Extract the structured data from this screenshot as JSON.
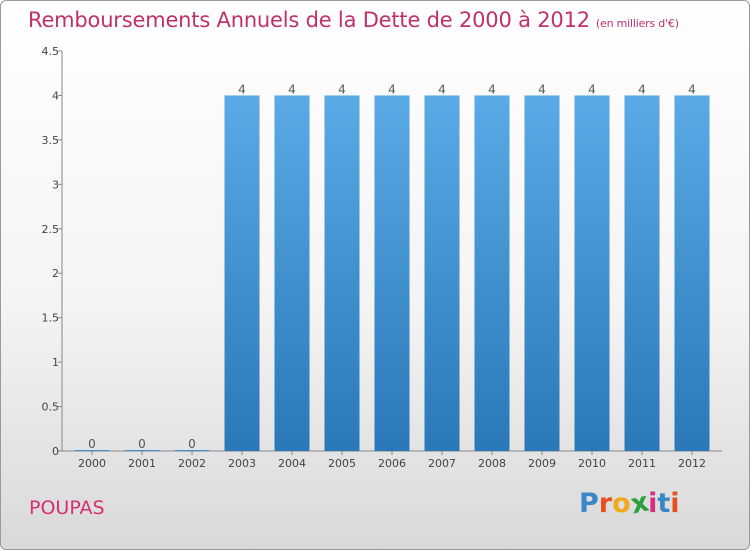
{
  "header": {
    "title": "Remboursements Annuels de la Dette de 2000 à 2012",
    "subtitle": "(en milliers d'€)"
  },
  "footer": {
    "commune": "POUPAS",
    "logo_letters": [
      "P",
      "r",
      "o",
      "x",
      "i",
      "t",
      "i"
    ],
    "logo_colors": [
      "#3a87c8",
      "#e7501e",
      "#f2a81c",
      "#2c9e3c",
      "#d92c86",
      "#3a87c8",
      "#e7501e"
    ]
  },
  "chart_data": {
    "type": "bar",
    "categories": [
      "2000",
      "2001",
      "2002",
      "2003",
      "2004",
      "2005",
      "2006",
      "2007",
      "2008",
      "2009",
      "2010",
      "2011",
      "2012"
    ],
    "values": [
      0,
      0,
      0,
      4,
      4,
      4,
      4,
      4,
      4,
      4,
      4,
      4,
      4
    ],
    "data_labels": [
      "0",
      "0",
      "0",
      "4",
      "4",
      "4",
      "4",
      "4",
      "4",
      "4",
      "4",
      "4",
      "4"
    ],
    "y_ticks": [
      0,
      0.5,
      1,
      1.5,
      2,
      2.5,
      3,
      3.5,
      4,
      4.5
    ],
    "y_tick_labels": [
      "0",
      "0.5",
      "1",
      "1.5",
      "2",
      "2.5",
      "3",
      "3.5",
      "4",
      "4.5"
    ],
    "ylim": [
      0,
      4.5
    ],
    "bar_color_top": "#5aaae6",
    "bar_color_bottom": "#2a78b8",
    "grid": false
  }
}
